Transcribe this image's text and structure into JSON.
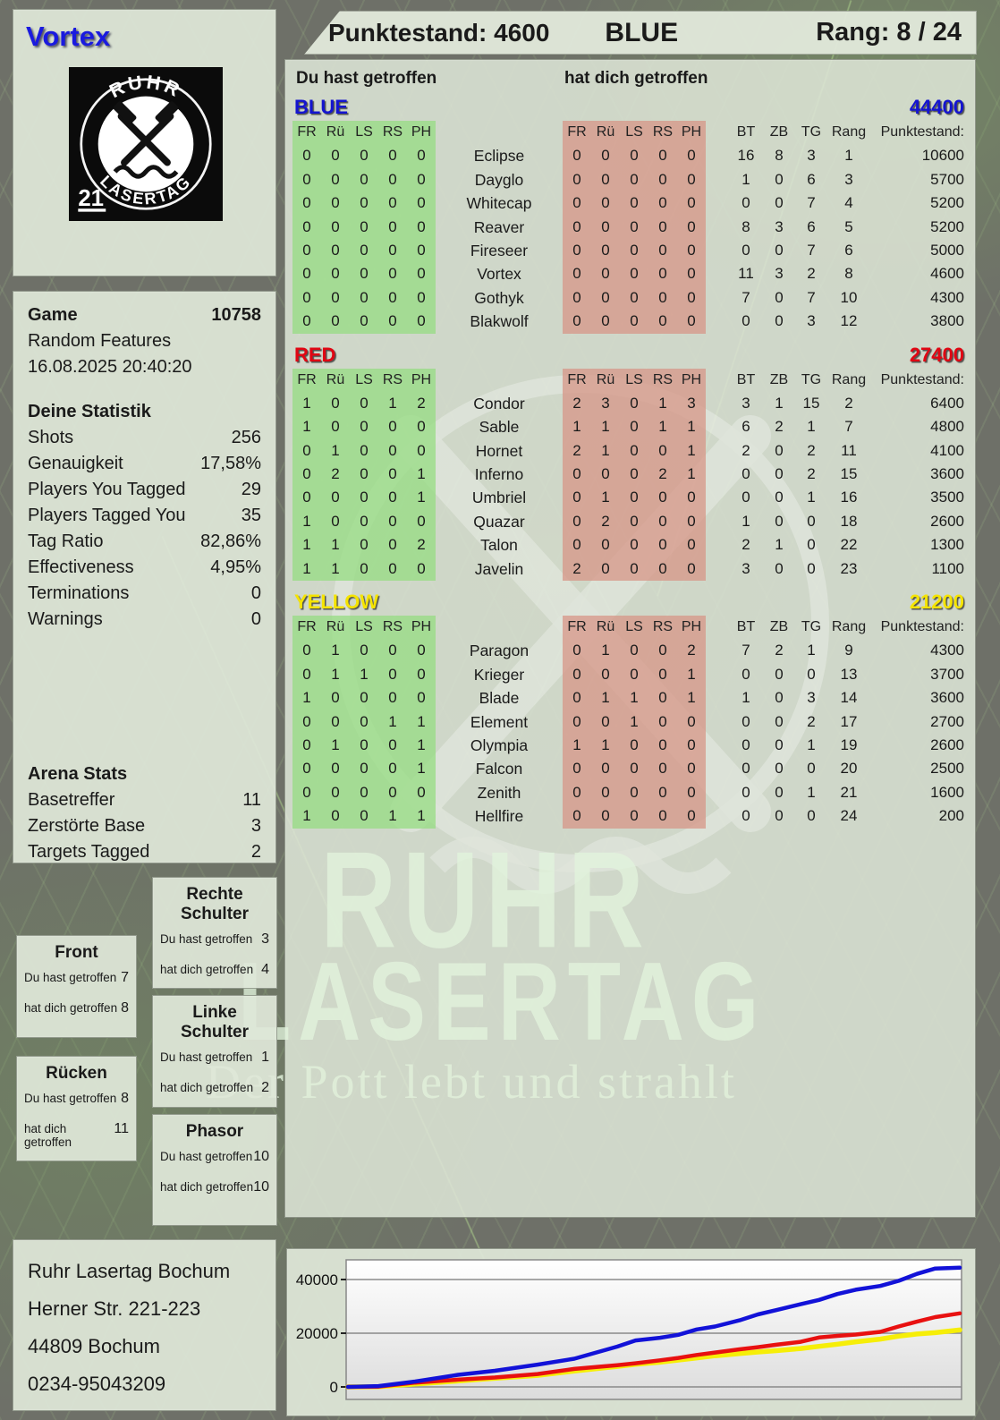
{
  "player": {
    "name": "Vortex"
  },
  "header_bar": {
    "punktestand": "Punktestand: 4600",
    "team": "BLUE",
    "rang": "Rang: 8 / 24"
  },
  "logo": {
    "arc_top": "RUHR",
    "arc_bottom": "LASERTAG",
    "badge": "21",
    "symbol": "crossed-hammers"
  },
  "columns": {
    "left_header": "Du hast getroffen",
    "right_header": "hat dich getroffen",
    "hit_cols": [
      "FR",
      "Rü",
      "LS",
      "RS",
      "PH"
    ],
    "stat_cols": [
      "BT",
      "ZB",
      "TG",
      "Rang",
      "Punktestand:"
    ]
  },
  "game_info": {
    "game_label": "Game",
    "game_number": "10758",
    "mode": "Random Features",
    "datetime": "16.08.2025 20:40:20"
  },
  "deine_statistik": {
    "title": "Deine Statistik",
    "rows": [
      [
        "Shots",
        "256"
      ],
      [
        "Genauigkeit",
        "17,58%"
      ],
      [
        "Players You Tagged",
        "29"
      ],
      [
        "Players Tagged You",
        "35"
      ],
      [
        "Tag Ratio",
        "82,86%"
      ],
      [
        "Effectiveness",
        "4,95%"
      ],
      [
        "Terminations",
        "0"
      ],
      [
        "Warnings",
        "0"
      ]
    ]
  },
  "arena_stats": {
    "title": "Arena Stats",
    "rows": [
      [
        "Basetreffer",
        "11"
      ],
      [
        "Zerstörte Base",
        "3"
      ],
      [
        "Targets Tagged",
        "2"
      ]
    ]
  },
  "body_panels": [
    {
      "title": "Front",
      "hit_label": "Du hast getroffen",
      "hit": "7",
      "got_label": "hat dich getroffen",
      "got": "8"
    },
    {
      "title": "Rücken",
      "hit_label": "Du hast getroffen",
      "hit": "8",
      "got_label": "hat dich getroffen",
      "got": "11"
    },
    {
      "title": "Rechte Schulter",
      "hit_label": "Du hast getroffen",
      "hit": "3",
      "got_label": "hat dich getroffen",
      "got": "4"
    },
    {
      "title": "Linke Schulter",
      "hit_label": "Du hast getroffen",
      "hit": "1",
      "got_label": "hat dich getroffen",
      "got": "2"
    },
    {
      "title": "Phasor",
      "hit_label": "Du hast getroffen",
      "hit": "10",
      "got_label": "hat dich getroffen",
      "got": "10"
    }
  ],
  "teams": [
    {
      "name": "BLUE",
      "color": "#1414d0",
      "total": "44400",
      "rows": [
        {
          "you": [
            0,
            0,
            0,
            0,
            0
          ],
          "player": "Eclipse",
          "them": [
            0,
            0,
            0,
            0,
            0
          ],
          "bt": "16",
          "zb": "8",
          "tg": "3",
          "rang": "1",
          "punkte": "10600"
        },
        {
          "you": [
            0,
            0,
            0,
            0,
            0
          ],
          "player": "Dayglo",
          "them": [
            0,
            0,
            0,
            0,
            0
          ],
          "bt": "1",
          "zb": "0",
          "tg": "6",
          "rang": "3",
          "punkte": "5700"
        },
        {
          "you": [
            0,
            0,
            0,
            0,
            0
          ],
          "player": "Whitecap",
          "them": [
            0,
            0,
            0,
            0,
            0
          ],
          "bt": "0",
          "zb": "0",
          "tg": "7",
          "rang": "4",
          "punkte": "5200"
        },
        {
          "you": [
            0,
            0,
            0,
            0,
            0
          ],
          "player": "Reaver",
          "them": [
            0,
            0,
            0,
            0,
            0
          ],
          "bt": "8",
          "zb": "3",
          "tg": "6",
          "rang": "5",
          "punkte": "5200"
        },
        {
          "you": [
            0,
            0,
            0,
            0,
            0
          ],
          "player": "Fireseer",
          "them": [
            0,
            0,
            0,
            0,
            0
          ],
          "bt": "0",
          "zb": "0",
          "tg": "7",
          "rang": "6",
          "punkte": "5000"
        },
        {
          "you": [
            0,
            0,
            0,
            0,
            0
          ],
          "player": "Vortex",
          "them": [
            0,
            0,
            0,
            0,
            0
          ],
          "bt": "11",
          "zb": "3",
          "tg": "2",
          "rang": "8",
          "punkte": "4600"
        },
        {
          "you": [
            0,
            0,
            0,
            0,
            0
          ],
          "player": "Gothyk",
          "them": [
            0,
            0,
            0,
            0,
            0
          ],
          "bt": "7",
          "zb": "0",
          "tg": "7",
          "rang": "10",
          "punkte": "4300"
        },
        {
          "you": [
            0,
            0,
            0,
            0,
            0
          ],
          "player": "Blakwolf",
          "them": [
            0,
            0,
            0,
            0,
            0
          ],
          "bt": "0",
          "zb": "0",
          "tg": "3",
          "rang": "12",
          "punkte": "3800"
        }
      ]
    },
    {
      "name": "RED",
      "color": "#e00613",
      "total": "27400",
      "rows": [
        {
          "you": [
            1,
            0,
            0,
            1,
            2
          ],
          "player": "Condor",
          "them": [
            2,
            3,
            0,
            1,
            3
          ],
          "bt": "3",
          "zb": "1",
          "tg": "15",
          "rang": "2",
          "punkte": "6400"
        },
        {
          "you": [
            1,
            0,
            0,
            0,
            0
          ],
          "player": "Sable",
          "them": [
            1,
            1,
            0,
            1,
            1
          ],
          "bt": "6",
          "zb": "2",
          "tg": "1",
          "rang": "7",
          "punkte": "4800"
        },
        {
          "you": [
            0,
            1,
            0,
            0,
            0
          ],
          "player": "Hornet",
          "them": [
            2,
            1,
            0,
            0,
            1
          ],
          "bt": "2",
          "zb": "0",
          "tg": "2",
          "rang": "11",
          "punkte": "4100"
        },
        {
          "you": [
            0,
            2,
            0,
            0,
            1
          ],
          "player": "Inferno",
          "them": [
            0,
            0,
            0,
            2,
            1
          ],
          "bt": "0",
          "zb": "0",
          "tg": "2",
          "rang": "15",
          "punkte": "3600"
        },
        {
          "you": [
            0,
            0,
            0,
            0,
            1
          ],
          "player": "Umbriel",
          "them": [
            0,
            1,
            0,
            0,
            0
          ],
          "bt": "0",
          "zb": "0",
          "tg": "1",
          "rang": "16",
          "punkte": "3500"
        },
        {
          "you": [
            1,
            0,
            0,
            0,
            0
          ],
          "player": "Quazar",
          "them": [
            0,
            2,
            0,
            0,
            0
          ],
          "bt": "1",
          "zb": "0",
          "tg": "0",
          "rang": "18",
          "punkte": "2600"
        },
        {
          "you": [
            1,
            1,
            0,
            0,
            2
          ],
          "player": "Talon",
          "them": [
            0,
            0,
            0,
            0,
            0
          ],
          "bt": "2",
          "zb": "1",
          "tg": "0",
          "rang": "22",
          "punkte": "1300"
        },
        {
          "you": [
            1,
            1,
            0,
            0,
            0
          ],
          "player": "Javelin",
          "them": [
            2,
            0,
            0,
            0,
            0
          ],
          "bt": "3",
          "zb": "0",
          "tg": "0",
          "rang": "23",
          "punkte": "1100"
        }
      ]
    },
    {
      "name": "YELLOW",
      "color": "#f5e400",
      "total": "21200",
      "rows": [
        {
          "you": [
            0,
            1,
            0,
            0,
            0
          ],
          "player": "Paragon",
          "them": [
            0,
            1,
            0,
            0,
            2
          ],
          "bt": "7",
          "zb": "2",
          "tg": "1",
          "rang": "9",
          "punkte": "4300"
        },
        {
          "you": [
            0,
            1,
            1,
            0,
            0
          ],
          "player": "Krieger",
          "them": [
            0,
            0,
            0,
            0,
            1
          ],
          "bt": "0",
          "zb": "0",
          "tg": "0",
          "rang": "13",
          "punkte": "3700"
        },
        {
          "you": [
            1,
            0,
            0,
            0,
            0
          ],
          "player": "Blade",
          "them": [
            0,
            1,
            1,
            0,
            1
          ],
          "bt": "1",
          "zb": "0",
          "tg": "3",
          "rang": "14",
          "punkte": "3600"
        },
        {
          "you": [
            0,
            0,
            0,
            1,
            1
          ],
          "player": "Element",
          "them": [
            0,
            0,
            1,
            0,
            0
          ],
          "bt": "0",
          "zb": "0",
          "tg": "2",
          "rang": "17",
          "punkte": "2700"
        },
        {
          "you": [
            0,
            1,
            0,
            0,
            1
          ],
          "player": "Olympia",
          "them": [
            1,
            1,
            0,
            0,
            0
          ],
          "bt": "0",
          "zb": "0",
          "tg": "1",
          "rang": "19",
          "punkte": "2600"
        },
        {
          "you": [
            0,
            0,
            0,
            0,
            1
          ],
          "player": "Falcon",
          "them": [
            0,
            0,
            0,
            0,
            0
          ],
          "bt": "0",
          "zb": "0",
          "tg": "0",
          "rang": "20",
          "punkte": "2500"
        },
        {
          "you": [
            0,
            0,
            0,
            0,
            0
          ],
          "player": "Zenith",
          "them": [
            0,
            0,
            0,
            0,
            0
          ],
          "bt": "0",
          "zb": "0",
          "tg": "1",
          "rang": "21",
          "punkte": "1600"
        },
        {
          "you": [
            1,
            0,
            0,
            1,
            1
          ],
          "player": "Hellfire",
          "them": [
            0,
            0,
            0,
            0,
            0
          ],
          "bt": "0",
          "zb": "0",
          "tg": "0",
          "rang": "24",
          "punkte": "200"
        }
      ]
    }
  ],
  "watermark": {
    "line1": "RUHR",
    "line2": "LASERTAG",
    "tagline": "Der Pott lebt und strahlt"
  },
  "address": [
    "Ruhr Lasertag Bochum",
    "Herner Str. 221-223",
    "44809 Bochum",
    "0234-95043209"
  ],
  "chart_data": {
    "type": "line",
    "title": "",
    "xlabel": "",
    "ylabel": "",
    "ylim": [
      0,
      47000
    ],
    "yticks": [
      0,
      20000,
      40000
    ],
    "grid": "horizontal",
    "legend": "none",
    "x_percent": [
      0,
      5,
      11,
      18,
      24,
      31,
      37,
      44,
      47,
      51,
      54,
      57,
      60,
      64,
      67,
      70,
      74,
      77,
      80,
      83,
      87,
      90,
      93,
      96,
      100
    ],
    "series": [
      {
        "name": "BLUE",
        "color": "#1212d8",
        "width": 4.5,
        "values": [
          0,
          300,
          2000,
          4500,
          6000,
          8300,
          10500,
          15000,
          17300,
          18300,
          19400,
          21400,
          22500,
          24800,
          27000,
          28600,
          30800,
          32400,
          34600,
          36200,
          37600,
          39500,
          42100,
          44100,
          44400
        ]
      },
      {
        "name": "RED",
        "color": "#e81010",
        "width": 4.5,
        "values": [
          0,
          100,
          1600,
          2700,
          3500,
          4800,
          6700,
          8100,
          8800,
          9900,
          10800,
          11900,
          12800,
          14000,
          14800,
          15700,
          16800,
          18400,
          19000,
          19500,
          20500,
          22500,
          24300,
          26000,
          27400
        ]
      },
      {
        "name": "YELLOW",
        "color": "#f6ee08",
        "width": 5.5,
        "values": [
          0,
          100,
          1100,
          2200,
          3200,
          4300,
          5900,
          7600,
          8400,
          9200,
          10000,
          10800,
          11600,
          12400,
          13000,
          13500,
          14300,
          15100,
          15900,
          16800,
          17800,
          18900,
          19700,
          20200,
          21200
        ]
      }
    ]
  }
}
